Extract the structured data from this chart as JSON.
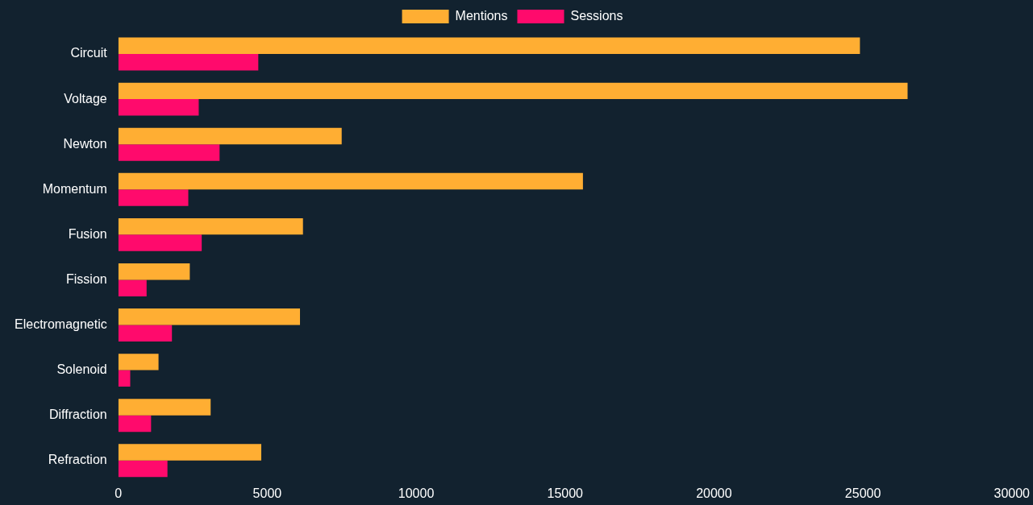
{
  "chart_data": {
    "type": "bar",
    "orientation": "horizontal",
    "categories": [
      "Circuit",
      "Voltage",
      "Newton",
      "Momentum",
      "Fusion",
      "Fission",
      "Electromagnetic",
      "Solenoid",
      "Diffraction",
      "Refraction"
    ],
    "series": [
      {
        "name": "Mentions",
        "color": "#ffae33",
        "values": [
          24900,
          26500,
          7500,
          15600,
          6200,
          2400,
          6100,
          1350,
          3100,
          4800
        ]
      },
      {
        "name": "Sessions",
        "color": "#ff0a6c",
        "values": [
          4700,
          2700,
          3400,
          2350,
          2800,
          950,
          1800,
          400,
          1100,
          1650
        ]
      }
    ],
    "xlim": [
      0,
      30000
    ],
    "xticks": [
      0,
      5000,
      10000,
      15000,
      20000,
      25000,
      30000
    ],
    "grid": false,
    "legend": "top"
  }
}
